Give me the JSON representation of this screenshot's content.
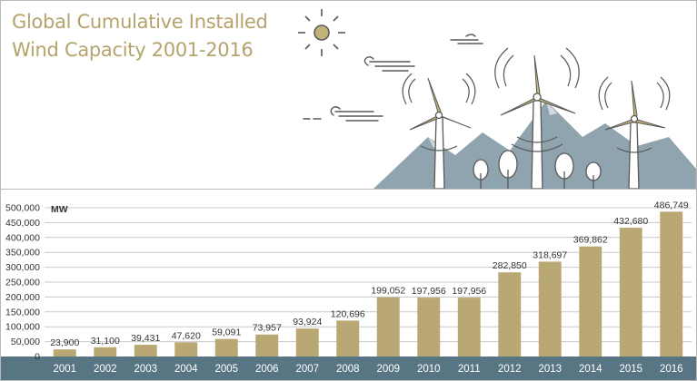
{
  "title": {
    "line1": "Global Cumulative Installed",
    "line2": "Wind Capacity 2001-2016"
  },
  "colors": {
    "title": "#b5a36c",
    "bar": "#b9a873",
    "year_bar": "#587584",
    "mountain": "#8fa4ae",
    "illustration_line": "#595959",
    "gridline": "#c8c8c8"
  },
  "chart_data": {
    "type": "bar",
    "title": "Global Cumulative Installed Wind Capacity 2001-2016",
    "xlabel": "",
    "ylabel": "MW",
    "ylim": [
      0,
      500000
    ],
    "grid": true,
    "categories": [
      "2001",
      "2002",
      "2003",
      "2004",
      "2005",
      "2006",
      "2007",
      "2008",
      "2009",
      "2010",
      "2011",
      "2012",
      "2013",
      "2014",
      "2015",
      "2016"
    ],
    "values": [
      23900,
      31100,
      39431,
      47620,
      59091,
      73957,
      93924,
      120696,
      199052,
      197956,
      197956,
      282850,
      318697,
      369862,
      432680,
      486749
    ],
    "data_labels": [
      "23,900",
      "31,100",
      "39,431",
      "47,620",
      "59,091",
      "73,957",
      "93,924",
      "120,696",
      "199,052",
      "197,956",
      "197,956",
      "282,850",
      "318,697",
      "369,862",
      "432,680",
      "486,749"
    ],
    "y_ticks": [
      0,
      50000,
      100000,
      150000,
      200000,
      250000,
      300000,
      350000,
      400000,
      450000,
      500000
    ],
    "y_tick_labels": [
      "0",
      "50,000",
      "100,000",
      "150,000",
      "200,000",
      "250,000",
      "300,000",
      "350,000",
      "400,000",
      "450,000",
      "500,000"
    ]
  },
  "icons": [
    "sun-icon",
    "wind-gust-icon",
    "wind-turbine-icon",
    "mountain-icon",
    "tree-icon"
  ]
}
